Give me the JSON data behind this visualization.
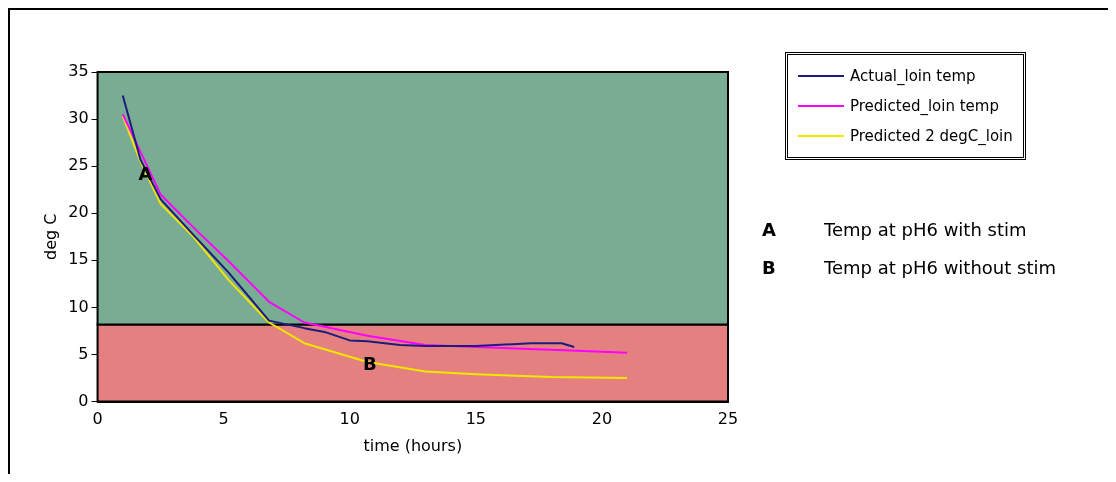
{
  "chart_data": {
    "type": "line",
    "xlabel": "time (hours)",
    "ylabel": "deg C",
    "xlim": [
      0,
      25
    ],
    "xticks": [
      0,
      5,
      10,
      15,
      20,
      25
    ],
    "ylim": [
      0,
      35
    ],
    "yticks": [
      0,
      5,
      10,
      15,
      20,
      25,
      30,
      35
    ],
    "legend": "top right",
    "marker": "none",
    "line_style": "solid",
    "grid": false,
    "bands": [
      {
        "axis": "y",
        "from": 0,
        "to": 8.2,
        "color": "#e58080"
      },
      {
        "axis": "y",
        "from": 8.2,
        "to": 35,
        "color": "#79ad93"
      }
    ],
    "annotations": [
      {
        "text": "A",
        "x": 1.9,
        "y": 24
      },
      {
        "text": "B",
        "x": 10.8,
        "y": 3.8
      },
      "A Temp at pH6 with stim",
      "B Temp at pH6 without stim"
    ],
    "series": [
      {
        "name": "Actual_loin temp",
        "color": "#1c1c80",
        "x": [
          1,
          1.7,
          2.5,
          3.8,
          5.2,
          6.8,
          8.2,
          9,
          10,
          10.7,
          12,
          13,
          15,
          17.2,
          18.4,
          18.9
        ],
        "values": [
          32.5,
          25.7,
          21.5,
          17.7,
          13.7,
          8.6,
          7.8,
          7.4,
          6.5,
          6.4,
          6.0,
          5.9,
          5.9,
          6.2,
          6.2,
          5.8
        ]
      },
      {
        "name": "Predicted_loin temp",
        "color": "#ff00ff",
        "x": [
          1,
          2.5,
          3.8,
          5.2,
          6.8,
          8.2,
          10.7,
          13,
          15,
          18,
          21
        ],
        "values": [
          30.5,
          22,
          18.5,
          14.9,
          10.6,
          8.4,
          7.0,
          6.0,
          5.8,
          5.5,
          5.2
        ]
      },
      {
        "name": "Predicted 2 degC_loin",
        "color": "#f2e600",
        "x": [
          1,
          1.7,
          2.5,
          3.8,
          5.2,
          6.8,
          8.2,
          10.7,
          13,
          15,
          18,
          21
        ],
        "values": [
          30.3,
          25.5,
          21,
          17.5,
          12.9,
          8.4,
          6.2,
          4.2,
          3.2,
          2.9,
          2.6,
          2.5
        ]
      }
    ]
  }
}
